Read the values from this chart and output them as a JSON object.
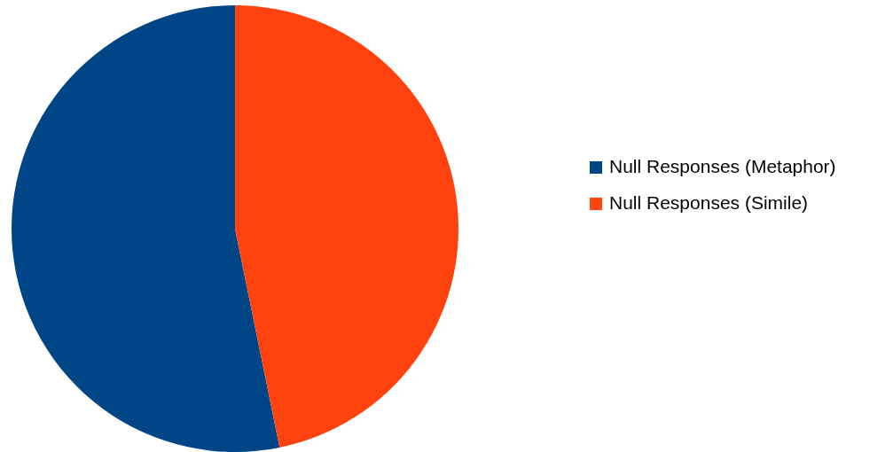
{
  "chart_data": {
    "type": "pie",
    "categories": [
      "Null Responses (Metaphor)",
      "Null Responses (Simile)"
    ],
    "values": [
      53.2,
      46.8
    ],
    "colors": [
      "#004586",
      "#ff420e"
    ],
    "legend": "right"
  }
}
